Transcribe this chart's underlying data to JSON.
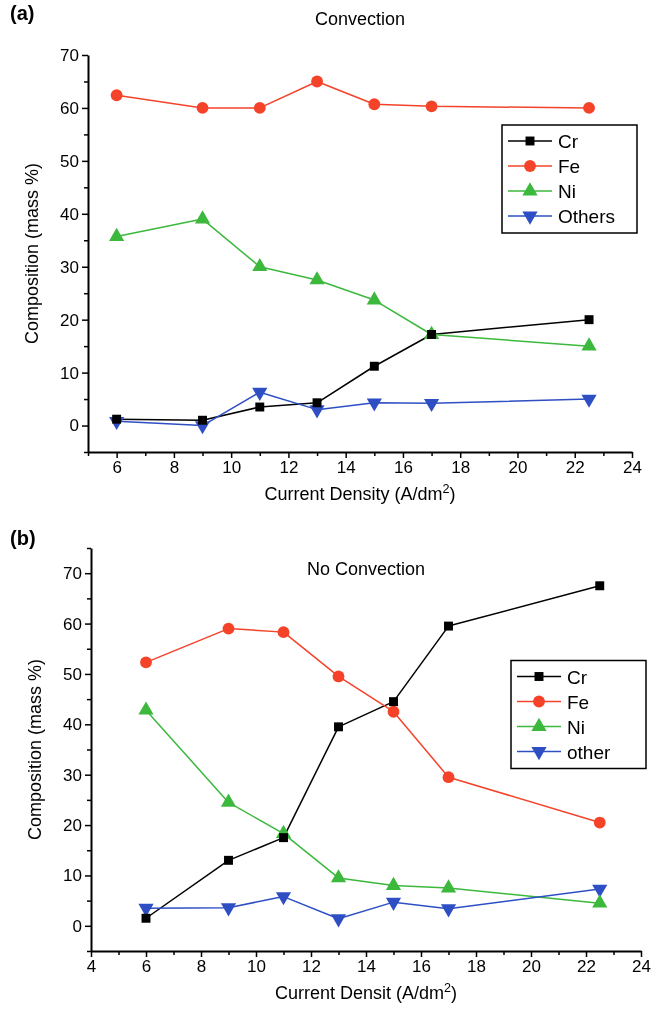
{
  "chart_data": [
    {
      "type": "line",
      "title": "Convection",
      "xlabel": "Current Density (A/dm$^{2}$)",
      "ylabel": "Composition (mass %)",
      "annotations": [
        "(a)"
      ],
      "x": [
        6,
        9,
        11,
        13,
        15,
        17,
        22.5
      ],
      "xlim": [
        5,
        24
      ],
      "xticks": [
        {
          "value": 5,
          "label": null
        },
        6,
        {
          "value": 7,
          "label": null
        },
        8,
        {
          "value": 9,
          "label": null
        },
        10,
        {
          "value": 11,
          "label": null
        },
        12,
        {
          "value": 13,
          "label": null
        },
        14,
        {
          "value": 15,
          "label": null
        },
        16,
        {
          "value": 17,
          "label": null
        },
        18,
        {
          "value": 19,
          "label": null
        },
        20,
        {
          "value": 21,
          "label": null
        },
        22,
        {
          "value": 23,
          "label": null
        },
        24
      ],
      "ylim": [
        -5,
        70
      ],
      "yticks": [
        {
          "value": -5,
          "label": null
        },
        0,
        {
          "value": 5,
          "label": null
        },
        10,
        {
          "value": 15,
          "label": null
        },
        20,
        {
          "value": 25,
          "label": null
        },
        30,
        {
          "value": 35,
          "label": null
        },
        40,
        {
          "value": 45,
          "label": null
        },
        50,
        {
          "value": 55,
          "label": null
        },
        60,
        {
          "value": 65,
          "label": null
        },
        70
      ],
      "legend": "top right",
      "grid": false,
      "series": [
        {
          "name": "Cr",
          "color": "#000000",
          "marker": "square",
          "values": [
            1.2,
            1,
            3.5,
            4.3,
            11.2,
            17.2,
            20
          ]
        },
        {
          "name": "Fe",
          "color": "#f5432a",
          "marker": "circle",
          "values": [
            62.4,
            60,
            60,
            65,
            60.7,
            60.3,
            60
          ]
        },
        {
          "name": "Ni",
          "color": "#3cb83c",
          "marker": "triangle",
          "values": [
            35.7,
            39,
            30,
            27.5,
            23.7,
            17.2,
            15
          ]
        },
        {
          "name": "Others",
          "color": "#2e4fc4",
          "marker": "triangle-down",
          "values": [
            0.8,
            0,
            6.3,
            3,
            4.3,
            4.2,
            5
          ]
        }
      ]
    },
    {
      "type": "line",
      "title": "No Convection",
      "xlabel": "Current Densit (A/dm$^{2}$)",
      "ylabel": "Composition (mass %)",
      "annotations": [
        "(b)"
      ],
      "x": [
        6,
        9,
        11,
        13,
        15,
        17,
        22.5
      ],
      "xlim": [
        4,
        24
      ],
      "xticks": [
        4,
        {
          "value": 5,
          "label": null
        },
        6,
        {
          "value": 7,
          "label": null
        },
        8,
        {
          "value": 9,
          "label": null
        },
        10,
        {
          "value": 11,
          "label": null
        },
        12,
        {
          "value": 13,
          "label": null
        },
        14,
        {
          "value": 15,
          "label": null
        },
        16,
        {
          "value": 17,
          "label": null
        },
        18,
        {
          "value": 19,
          "label": null
        },
        20,
        {
          "value": 21,
          "label": null
        },
        22,
        {
          "value": 23,
          "label": null
        },
        24
      ],
      "ylim": [
        -5,
        75
      ],
      "yticks": [
        {
          "value": -5,
          "label": null
        },
        0,
        {
          "value": 5,
          "label": null
        },
        10,
        {
          "value": 15,
          "label": null
        },
        20,
        {
          "value": 25,
          "label": null
        },
        30,
        {
          "value": 35,
          "label": null
        },
        40,
        {
          "value": 45,
          "label": null
        },
        50,
        {
          "value": 55,
          "label": null
        },
        60,
        {
          "value": 65,
          "label": null
        },
        70,
        {
          "value": 75,
          "label": null
        }
      ],
      "legend": "right",
      "grid": false,
      "series": [
        {
          "name": "Cr",
          "color": "#000000",
          "marker": "square",
          "values": [
            1.5,
            13,
            17.5,
            39.5,
            44.5,
            59.5,
            67.5
          ]
        },
        {
          "name": "Fe",
          "color": "#f5432a",
          "marker": "circle",
          "values": [
            52.3,
            59,
            58.3,
            49.5,
            42.5,
            29.5,
            20.5
          ]
        },
        {
          "name": "Ni",
          "color": "#3cb83c",
          "marker": "triangle",
          "values": [
            42.8,
            24.5,
            18.3,
            9.5,
            8,
            7.5,
            4.5
          ]
        },
        {
          "name": "other",
          "color": "#2e4fc4",
          "marker": "triangle-down",
          "values": [
            3.5,
            3.6,
            5.8,
            1.4,
            4.7,
            3.4,
            7.3
          ]
        }
      ]
    }
  ]
}
